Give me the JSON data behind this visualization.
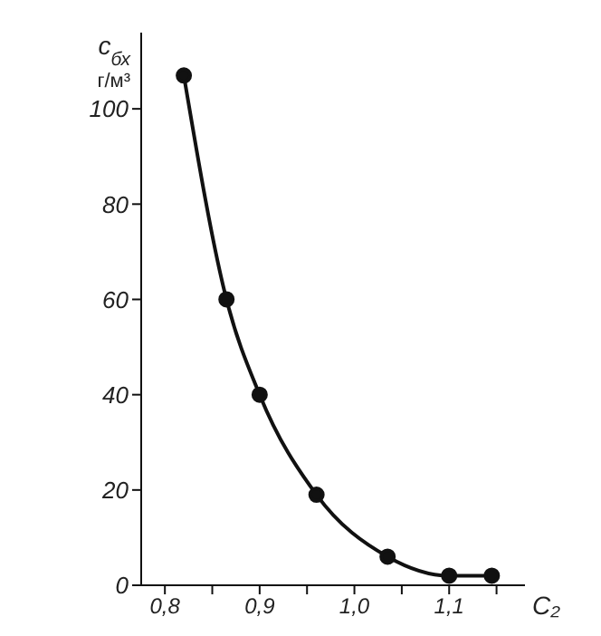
{
  "chart_data": {
    "type": "line",
    "xlabel": "C₂",
    "ylabel": "c$_{бх}$ г/м³",
    "x": [
      0.82,
      0.865,
      0.9,
      0.96,
      1.035,
      1.1,
      1.145
    ],
    "series": [
      {
        "color": "#111111",
        "values": [
          107,
          60,
          40,
          19,
          6,
          2,
          2
        ]
      }
    ],
    "marker": "circle",
    "line_style": "solid",
    "grid": false,
    "legend": false,
    "xlim": [
      0.775,
      1.18
    ],
    "ylim": [
      0,
      116
    ],
    "xticks": [
      {
        "value": 0.8,
        "label": "0,8"
      },
      {
        "value": 0.85,
        "label": null
      },
      {
        "value": 0.9,
        "label": "0,9"
      },
      {
        "value": 0.95,
        "label": null
      },
      {
        "value": 1.0,
        "label": "1,0"
      },
      {
        "value": 1.05,
        "label": null
      },
      {
        "value": 1.1,
        "label": "1,1"
      },
      {
        "value": 1.15,
        "label": null
      }
    ],
    "yticks": [
      0,
      20,
      40,
      60,
      80,
      100
    ]
  }
}
